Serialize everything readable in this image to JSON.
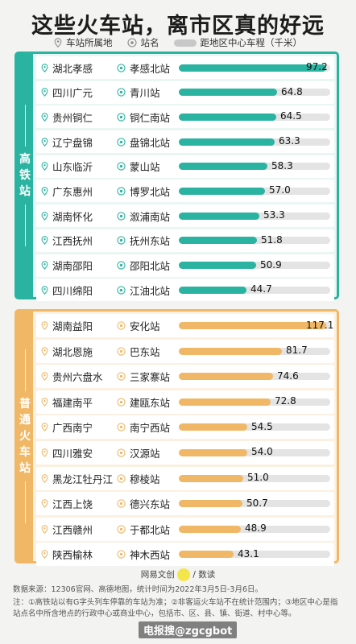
{
  "title": "这些火车站，离市区真的好远",
  "legend": {
    "province": "车站所属地",
    "station": "站名",
    "distance": "距地区中心车程（千米）"
  },
  "colors": {
    "hsr": "#2bb3a2",
    "regular": "#f0b866",
    "track": "#e4e4e4"
  },
  "chart_data": [
    {
      "type": "bar",
      "title": "高铁站",
      "categories": [
        "湖北孝感",
        "四川广元",
        "贵州铜仁",
        "辽宁盘锦",
        "山东临沂",
        "广东惠州",
        "湖南怀化",
        "江西抚州",
        "湖南邵阳",
        "四川绵阳"
      ],
      "stations": [
        "孝感北站",
        "青川站",
        "铜仁南站",
        "盘锦北站",
        "蒙山站",
        "博罗北站",
        "溆浦南站",
        "抚州东站",
        "邵阳北站",
        "江油北站"
      ],
      "values": [
        97.2,
        64.8,
        64.5,
        63.3,
        58.3,
        57.0,
        53.3,
        51.8,
        50.9,
        44.7
      ],
      "labels": [
        "97.2",
        "64.8",
        "64.5",
        "63.3",
        "58.3",
        "57.0",
        "53.3",
        "51.8",
        "50.9",
        "44.7"
      ],
      "xlim": [
        0,
        100
      ]
    },
    {
      "type": "bar",
      "title": "普通火车站",
      "categories": [
        "湖南益阳",
        "湖北恩施",
        "贵州六盘水",
        "福建南平",
        "广西南宁",
        "四川雅安",
        "黑龙江牡丹江",
        "江西上饶",
        "江西赣州",
        "陕西榆林"
      ],
      "stations": [
        "安化站",
        "巴东站",
        "三家寨站",
        "建瓯东站",
        "南宁西站",
        "汉源站",
        "穆棱站",
        "德兴东站",
        "于都北站",
        "神木西站"
      ],
      "values": [
        117.1,
        81.7,
        74.6,
        72.8,
        54.5,
        54.0,
        51.0,
        50.7,
        48.9,
        43.1
      ],
      "labels": [
        "117.1",
        "81.7",
        "74.6",
        "72.8",
        "54.5",
        "54.0",
        "51.0",
        "50.7",
        "48.9",
        "43.1"
      ],
      "xlim": [
        0,
        120
      ]
    }
  ],
  "credit": {
    "left": "网易",
    "brand": "文创",
    "right": "/ 数读"
  },
  "source": "数据来源：12306官网、高德地图，统计时间为2022年3月5日-3月6日。",
  "footnote": "注：①高铁站以有G字头列车停靠的车站为准；②非客运火车站不在统计范围内；③地区中心是指站点名中所含地点的行政中心或商业中心，包括市、区、县、镇、街道、村中心等。",
  "watermark": "电报搜@zgcgbot"
}
